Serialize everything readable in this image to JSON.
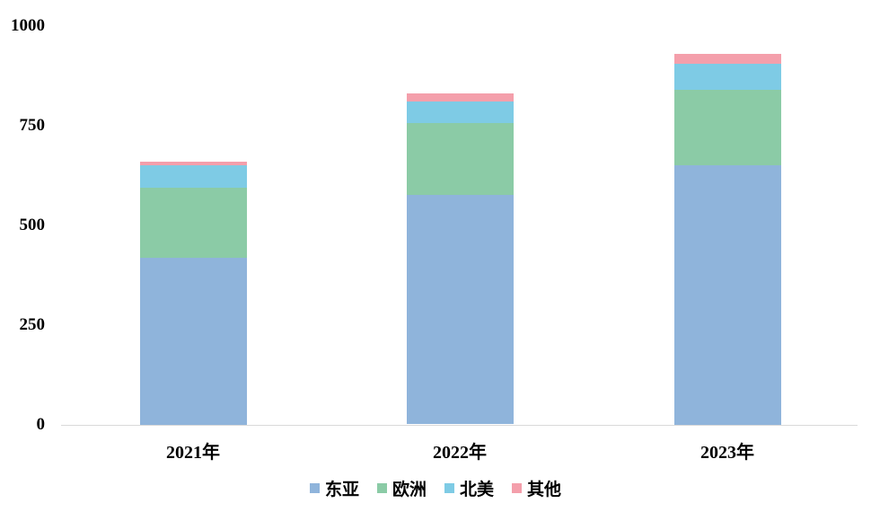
{
  "chart_data": {
    "type": "bar",
    "stacked": true,
    "title": "",
    "xlabel": "",
    "ylabel": "",
    "categories": [
      "2021年",
      "2022年",
      "2023年"
    ],
    "series": [
      {
        "key": "east-asia",
        "name": "东亚",
        "color": "#8FB4DB",
        "values": [
          420,
          575,
          650
        ]
      },
      {
        "key": "europe",
        "name": "欧洲",
        "color": "#8BCBA6",
        "values": [
          175,
          180,
          190
        ]
      },
      {
        "key": "north-america",
        "name": "北美",
        "color": "#7ECBE5",
        "values": [
          55,
          55,
          65
        ]
      },
      {
        "key": "other",
        "name": "其他",
        "color": "#F49FAB",
        "values": [
          10,
          20,
          25
        ]
      }
    ],
    "totals": [
      660,
      830,
      930
    ],
    "ylim": [
      0,
      1000
    ],
    "yticks": [
      "0",
      "250",
      "500",
      "750",
      "1000"
    ],
    "grid": false,
    "legend_position": "bottom",
    "axis_line_color": "#D9D9D9",
    "text_color": "#000000",
    "background_color": "#FFFFFF"
  }
}
